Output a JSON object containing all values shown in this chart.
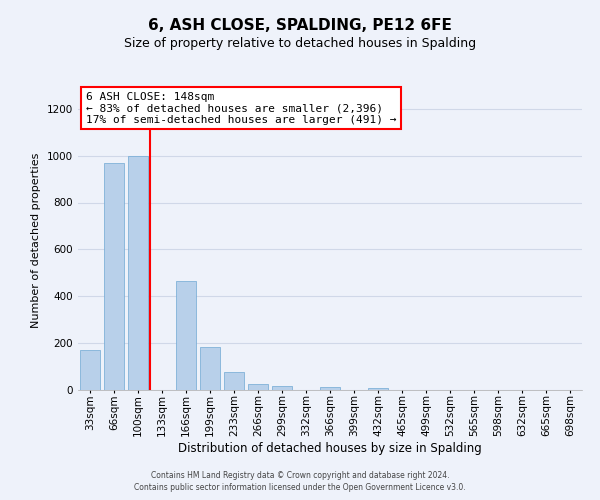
{
  "title": "6, ASH CLOSE, SPALDING, PE12 6FE",
  "subtitle": "Size of property relative to detached houses in Spalding",
  "xlabel": "Distribution of detached houses by size in Spalding",
  "ylabel": "Number of detached properties",
  "bar_labels": [
    "33sqm",
    "66sqm",
    "100sqm",
    "133sqm",
    "166sqm",
    "199sqm",
    "233sqm",
    "266sqm",
    "299sqm",
    "332sqm",
    "366sqm",
    "399sqm",
    "432sqm",
    "465sqm",
    "499sqm",
    "532sqm",
    "565sqm",
    "598sqm",
    "632sqm",
    "665sqm",
    "698sqm"
  ],
  "bar_values": [
    170,
    970,
    1000,
    0,
    465,
    185,
    75,
    25,
    18,
    0,
    12,
    0,
    10,
    0,
    0,
    0,
    0,
    0,
    0,
    0,
    0
  ],
  "bar_color": "#b8d0ea",
  "bar_edge_color": "#6fa8d4",
  "vline_color": "red",
  "vline_pos": 2.5,
  "ylim": [
    0,
    1280
  ],
  "yticks": [
    0,
    200,
    400,
    600,
    800,
    1000,
    1200
  ],
  "annotation_title": "6 ASH CLOSE: 148sqm",
  "annotation_line1": "← 83% of detached houses are smaller (2,396)",
  "annotation_line2": "17% of semi-detached houses are larger (491) →",
  "annotation_box_facecolor": "white",
  "annotation_box_edgecolor": "red",
  "footer_line1": "Contains HM Land Registry data © Crown copyright and database right 2024.",
  "footer_line2": "Contains public sector information licensed under the Open Government Licence v3.0.",
  "background_color": "#eef2fa",
  "grid_color": "#d0d8e8",
  "title_fontsize": 11,
  "subtitle_fontsize": 9,
  "ylabel_fontsize": 8,
  "xlabel_fontsize": 8.5,
  "tick_fontsize": 7.5,
  "annotation_fontsize": 8,
  "footer_fontsize": 5.5
}
